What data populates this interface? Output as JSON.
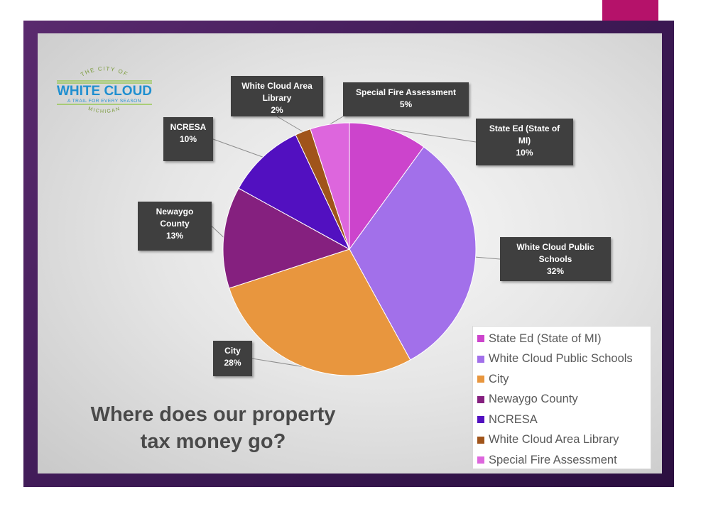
{
  "logo": {
    "top_text": "THE CITY OF",
    "name": "WHITE CLOUD",
    "tagline": "A TRAIL FOR EVERY SEASON",
    "bottom_text": "MICHIGAN"
  },
  "slide_title": [
    "Where does our property",
    "tax money go?"
  ],
  "chart_data": {
    "type": "pie",
    "title": "",
    "legend_position": "bottom-right",
    "start_angle_deg": 0,
    "direction": "clockwise",
    "slices": [
      {
        "label": "State Ed (State of MI)",
        "value": 10,
        "color": "#cc44cc",
        "label_lines": [
          "State Ed (State of",
          "MI)"
        ],
        "pct": "10%"
      },
      {
        "label": "White Cloud Public Schools",
        "value": 32,
        "color": "#a270ea",
        "label_lines": [
          "White Cloud Public",
          "Schools"
        ],
        "pct": "32%"
      },
      {
        "label": "City",
        "value": 28,
        "color": "#e8963e",
        "label_lines": [
          "City"
        ],
        "pct": "28%"
      },
      {
        "label": "Newaygo County",
        "value": 13,
        "color": "#85207f",
        "label_lines": [
          "Newaygo",
          "County"
        ],
        "pct": "13%"
      },
      {
        "label": "NCRESA",
        "value": 10,
        "color": "#5210c0",
        "label_lines": [
          "NCRESA"
        ],
        "pct": "10%"
      },
      {
        "label": "White Cloud Area Library",
        "value": 2,
        "color": "#a0541a",
        "label_lines": [
          "White Cloud Area",
          "Library"
        ],
        "pct": "2%"
      },
      {
        "label": "Special Fire Assessment",
        "value": 5,
        "color": "#dd66dd",
        "label_lines": [
          "Special Fire Assessment"
        ],
        "pct": "5%"
      }
    ]
  }
}
